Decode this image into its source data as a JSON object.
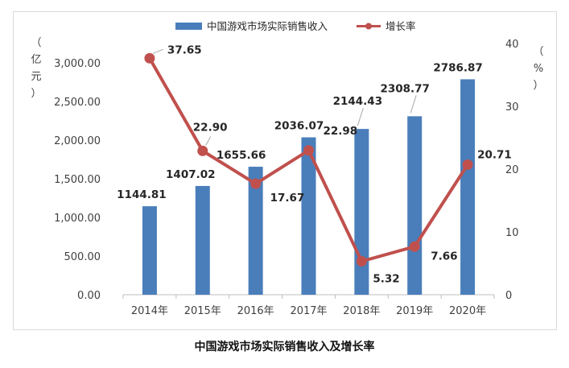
{
  "caption": "中国游戏市场实际销售收入及增长率",
  "colors": {
    "bar": "#4a7ebb",
    "line": "#c0504d",
    "grid": "#d9d9d9",
    "axis": "#bfbfbf"
  },
  "chart_data": {
    "type": "bar+line",
    "categories": [
      "2014年",
      "2015年",
      "2016年",
      "2017年",
      "2018年",
      "2019年",
      "2020年"
    ],
    "series": [
      {
        "name": "中国游戏市场实际销售收入",
        "type": "bar",
        "axis": "left",
        "values": [
          1144.81,
          1407.02,
          1655.66,
          2036.07,
          2144.43,
          2308.77,
          2786.87
        ],
        "labels": [
          "1144.81",
          "1407.02",
          "1655.66",
          "2036.07",
          "2144.43",
          "2308.77",
          "2786.87"
        ]
      },
      {
        "name": "增长率",
        "type": "line",
        "axis": "right",
        "values": [
          37.65,
          22.9,
          17.67,
          22.98,
          5.32,
          7.66,
          20.71
        ],
        "labels": [
          "37.65",
          "22.90",
          "17.67",
          "22.98",
          "5.32",
          "7.66",
          "20.71"
        ]
      }
    ],
    "y_left": {
      "unit_chars": [
        "（",
        "亿",
        "元",
        "）"
      ],
      "ylim": [
        0,
        3000
      ],
      "ticks": [
        "0.00",
        "500.00",
        "1,000.00",
        "1,500.00",
        "2,000.00",
        "2,500.00",
        "3,000.00"
      ]
    },
    "y_right": {
      "unit_chars": [
        "（",
        "%",
        "）"
      ],
      "ylim": [
        0,
        40
      ],
      "ticks": [
        "0",
        "10",
        "20",
        "30",
        "40"
      ]
    },
    "legend_position": "top-center",
    "grid": false
  }
}
